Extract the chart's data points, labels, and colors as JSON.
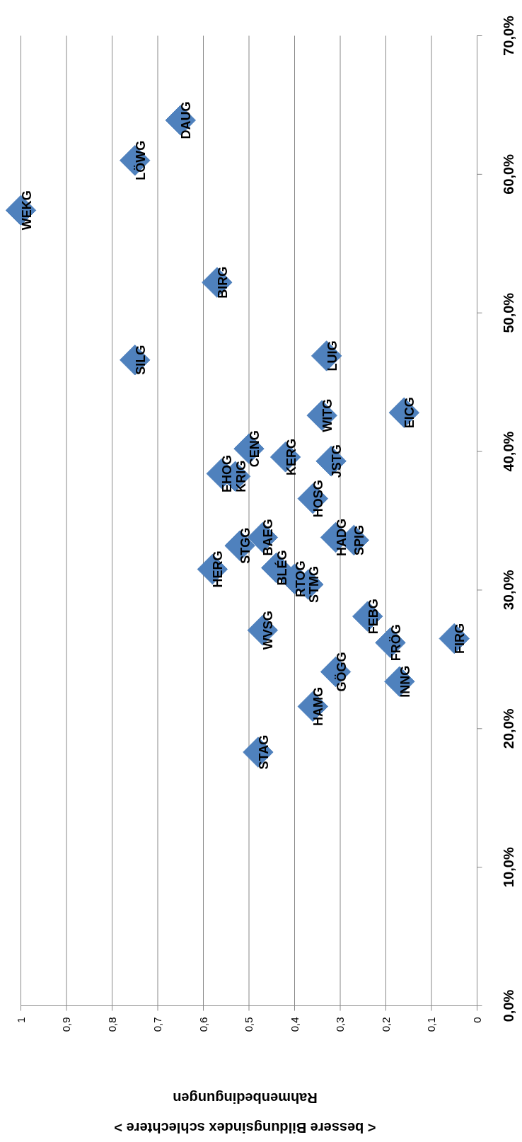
{
  "chart_data": {
    "type": "scatter",
    "xlabel": "< bessere Bildungsindex schlechtere >\nRahmenbedingungen",
    "x": [
      1.0,
      0.75,
      0.65,
      0.57,
      0.75,
      0.33,
      0.34,
      0.16,
      0.5,
      0.42,
      0.32,
      0.56,
      0.53,
      0.36,
      0.47,
      0.52,
      0.31,
      0.27,
      0.58,
      0.44,
      0.4,
      0.37,
      0.24,
      0.47,
      0.19,
      0.05,
      0.31,
      0.17,
      0.36,
      0.48
    ],
    "series": [
      {
        "color": "#4f81bd",
        "values": [
          57.4,
          61.0,
          63.9,
          52.2,
          46.6,
          46.9,
          42.6,
          42.8,
          40.2,
          39.6,
          39.3,
          38.4,
          38.2,
          36.6,
          33.8,
          33.2,
          33.8,
          33.6,
          31.5,
          31.6,
          30.8,
          30.4,
          28.1,
          27.1,
          26.2,
          26.5,
          24.1,
          23.4,
          21.6,
          18.3
        ]
      }
    ],
    "marker": "diamond",
    "annotations": [
      {
        "text": "WEKG",
        "x": 1.0,
        "y": 57.4
      },
      {
        "text": "LÖWG",
        "x": 0.75,
        "y": 61.0
      },
      {
        "text": "DAUG",
        "x": 0.65,
        "y": 63.9
      },
      {
        "text": "BIRG",
        "x": 0.57,
        "y": 52.2
      },
      {
        "text": "SILG",
        "x": 0.75,
        "y": 46.6
      },
      {
        "text": "LUIG",
        "x": 0.33,
        "y": 46.9
      },
      {
        "text": "WITG",
        "x": 0.34,
        "y": 42.6
      },
      {
        "text": "EICG",
        "x": 0.16,
        "y": 42.8
      },
      {
        "text": "CENG",
        "x": 0.5,
        "y": 40.2
      },
      {
        "text": "KERG",
        "x": 0.42,
        "y": 39.6
      },
      {
        "text": "JSTG",
        "x": 0.32,
        "y": 39.3
      },
      {
        "text": "EHOG",
        "x": 0.56,
        "y": 38.4
      },
      {
        "text": "KRIG",
        "x": 0.53,
        "y": 38.2
      },
      {
        "text": "HOSG",
        "x": 0.36,
        "y": 36.6
      },
      {
        "text": "BAEG",
        "x": 0.47,
        "y": 33.8
      },
      {
        "text": "STGG",
        "x": 0.52,
        "y": 33.2
      },
      {
        "text": "HADG",
        "x": 0.31,
        "y": 33.8
      },
      {
        "text": "SPIG",
        "x": 0.27,
        "y": 33.6
      },
      {
        "text": "HERG",
        "x": 0.58,
        "y": 31.5
      },
      {
        "text": "BLÉG",
        "x": 0.44,
        "y": 31.6
      },
      {
        "text": "RTOG",
        "x": 0.4,
        "y": 30.8
      },
      {
        "text": "STMG",
        "x": 0.37,
        "y": 30.4
      },
      {
        "text": "FEBG",
        "x": 0.24,
        "y": 28.1
      },
      {
        "text": "WVSG",
        "x": 0.47,
        "y": 27.1
      },
      {
        "text": "FRÖG",
        "x": 0.19,
        "y": 26.2
      },
      {
        "text": "FIRG",
        "x": 0.05,
        "y": 26.5
      },
      {
        "text": "GÖGG",
        "x": 0.31,
        "y": 24.1
      },
      {
        "text": "INNG",
        "x": 0.17,
        "y": 23.4
      },
      {
        "text": "HAMG",
        "x": 0.36,
        "y": 21.6
      },
      {
        "text": "STAG",
        "x": 0.48,
        "y": 18.3
      }
    ],
    "xlim": [
      1,
      0
    ],
    "xticks": [
      {
        "value": 1,
        "label": "1"
      },
      {
        "value": 0.9,
        "label": "0,9"
      },
      {
        "value": 0.8,
        "label": "0,8"
      },
      {
        "value": 0.7,
        "label": "0,7"
      },
      {
        "value": 0.6,
        "label": "0,6"
      },
      {
        "value": 0.5,
        "label": "0,5"
      },
      {
        "value": 0.4,
        "label": "0,4"
      },
      {
        "value": 0.3,
        "label": "0,3"
      },
      {
        "value": 0.2,
        "label": "0,2"
      },
      {
        "value": 0.1,
        "label": "0,1"
      },
      {
        "value": 0,
        "label": "0"
      }
    ],
    "ylim": [
      0,
      70
    ],
    "yticks": [
      {
        "value": 0,
        "label": "0,0%"
      },
      {
        "value": 10,
        "label": "10,0%"
      },
      {
        "value": 20,
        "label": "20,0%"
      },
      {
        "value": 30,
        "label": "30,0%"
      },
      {
        "value": 40,
        "label": "40,0%"
      },
      {
        "value": 50,
        "label": "50,0%"
      },
      {
        "value": 60,
        "label": "60,0%"
      },
      {
        "value": 70,
        "label": "70,0%"
      }
    ],
    "grid": "x"
  }
}
